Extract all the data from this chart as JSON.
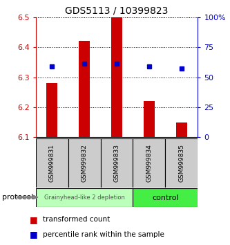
{
  "title": "GDS5113 / 10399823",
  "samples": [
    "GSM999831",
    "GSM999832",
    "GSM999833",
    "GSM999834",
    "GSM999835"
  ],
  "transformed_counts": [
    6.28,
    6.42,
    6.5,
    6.22,
    6.15
  ],
  "bar_bottom": 6.1,
  "percentile_ranks_val": [
    6.335,
    6.345,
    6.345,
    6.335,
    6.33
  ],
  "ylim": [
    6.1,
    6.5
  ],
  "y_ticks": [
    6.1,
    6.2,
    6.3,
    6.4,
    6.5
  ],
  "y2_ticks": [
    0,
    25,
    50,
    75,
    100
  ],
  "y2_tick_labels": [
    "0",
    "25",
    "50",
    "75",
    "100%"
  ],
  "bar_color": "#cc0000",
  "dot_color": "#0000cc",
  "group1_label": "Grainyhead-like 2 depletion",
  "group2_label": "control",
  "group1_color": "#bbffbb",
  "group2_color": "#44ee44",
  "group1_n": 3,
  "group2_n": 2,
  "protocol_label": "protocol",
  "legend_bar_label": "transformed count",
  "legend_dot_label": "percentile rank within the sample",
  "tick_label_color_left": "#cc0000",
  "tick_label_color_right": "#0000cc",
  "sample_label_bg": "#cccccc",
  "title_fontsize": 10
}
